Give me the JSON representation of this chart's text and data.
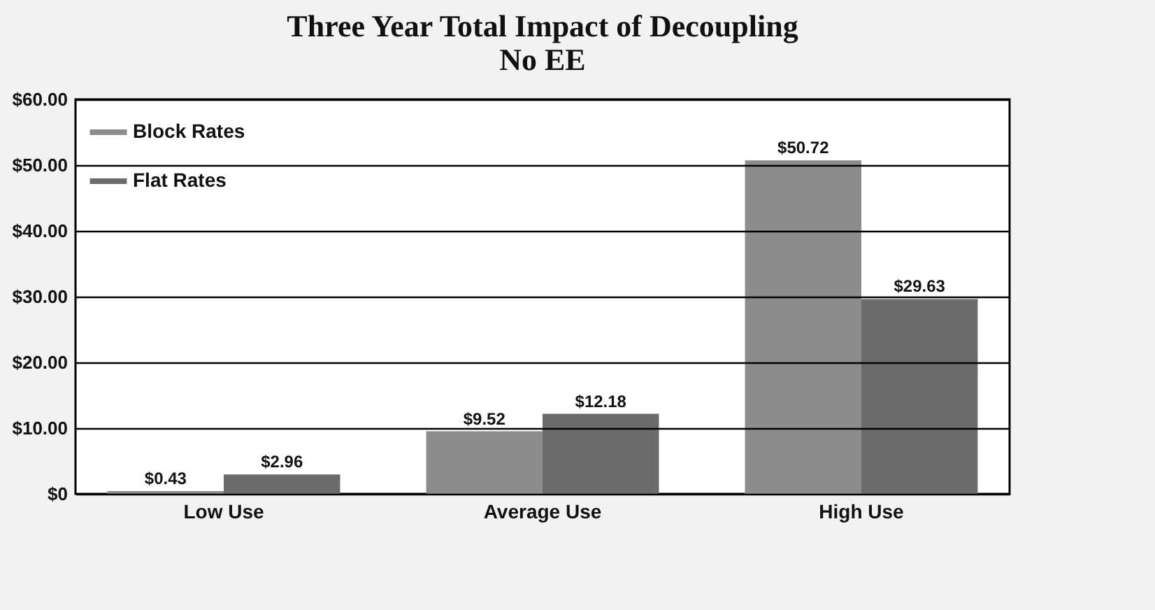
{
  "chart_data": {
    "type": "bar",
    "title": "Three Year Total Impact of Decoupling",
    "subtitle": "No EE",
    "categories": [
      "Low Use",
      "Average Use",
      "High Use"
    ],
    "series": [
      {
        "name": "Block Rates",
        "color": "#8c8c8c",
        "values": [
          0.43,
          9.52,
          50.72
        ],
        "value_labels": [
          "$0.43",
          "$9.52",
          "$50.72"
        ]
      },
      {
        "name": "Flat Rates",
        "color": "#6b6b6b",
        "values": [
          2.96,
          12.18,
          29.63
        ],
        "value_labels": [
          "$2.96",
          "$12.18",
          "$29.63"
        ]
      }
    ],
    "ylim": [
      0,
      60
    ],
    "yticks": [
      {
        "value": 0,
        "label": "$0"
      },
      {
        "value": 10,
        "label": "$10.00"
      },
      {
        "value": 20,
        "label": "$20.00"
      },
      {
        "value": 30,
        "label": "$30.00"
      },
      {
        "value": 40,
        "label": "$40.00"
      },
      {
        "value": 50,
        "label": "$50.00"
      },
      {
        "value": 60,
        "label": "$60.00"
      }
    ],
    "grid": "y",
    "legend": "top left"
  }
}
